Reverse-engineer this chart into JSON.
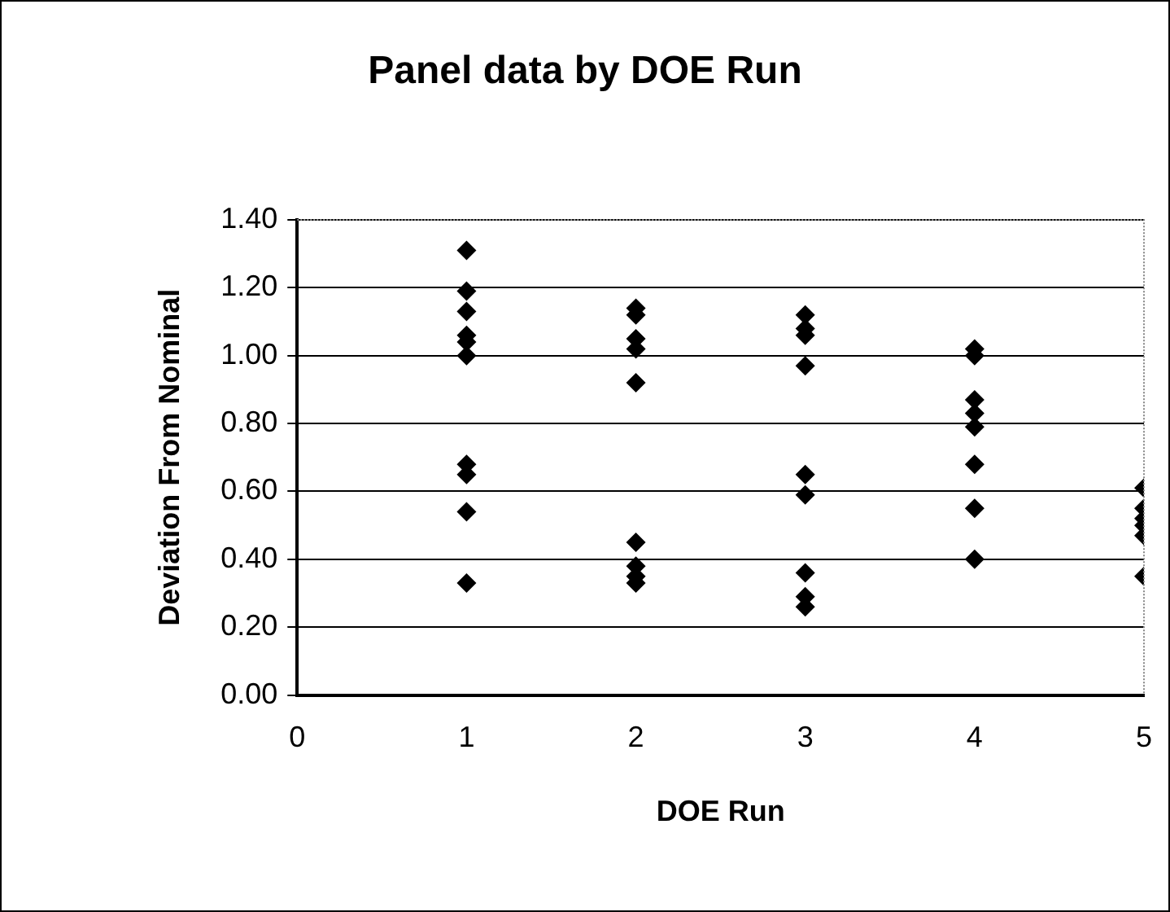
{
  "chart_data": {
    "type": "scatter",
    "title": "Panel data by DOE Run",
    "xlabel": "DOE Run",
    "ylabel": "Deviation From Nominal",
    "x": [
      1,
      1,
      1,
      1,
      1,
      1,
      1,
      1,
      1,
      1,
      2,
      2,
      2,
      2,
      2,
      2,
      2,
      2,
      2,
      3,
      3,
      3,
      3,
      3,
      3,
      3,
      3,
      3,
      4,
      4,
      4,
      4,
      4,
      4,
      4,
      4,
      5,
      5,
      5,
      5,
      5,
      5
    ],
    "series": [
      {
        "color": "#000000",
        "values": [
          1.31,
          1.19,
          1.13,
          1.06,
          1.04,
          1.0,
          0.68,
          0.65,
          0.54,
          0.33,
          1.14,
          1.12,
          1.05,
          1.02,
          0.92,
          0.45,
          0.38,
          0.35,
          0.33,
          1.12,
          1.08,
          1.06,
          0.97,
          0.65,
          0.59,
          0.36,
          0.29,
          0.26,
          1.02,
          1.0,
          0.87,
          0.83,
          0.79,
          0.68,
          0.55,
          0.4,
          0.61,
          0.55,
          0.52,
          0.5,
          0.47,
          0.35
        ]
      }
    ],
    "xlim": [
      0,
      5
    ],
    "xticks": [
      0,
      1,
      2,
      3,
      4,
      5
    ],
    "ylim": [
      0,
      1.4
    ],
    "yticks": [
      {
        "value": 0,
        "label": "0.00"
      },
      {
        "value": 0.2,
        "label": "0.20"
      },
      {
        "value": 0.4,
        "label": "0.40"
      },
      {
        "value": 0.6,
        "label": "0.60"
      },
      {
        "value": 0.8,
        "label": "0.80"
      },
      {
        "value": 1,
        "label": "1.00"
      },
      {
        "value": 1.2,
        "label": "1.20"
      },
      {
        "value": 1.4,
        "label": "1.40"
      }
    ],
    "grid": "y",
    "legend": false,
    "marker": "diamond"
  }
}
